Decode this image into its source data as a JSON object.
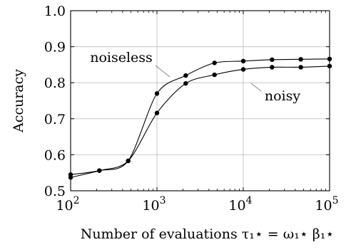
{
  "chart_data": {
    "type": "line",
    "xscale": "log",
    "xlim": [
      100,
      100000
    ],
    "ylim": [
      0.5,
      1.0
    ],
    "grid": true,
    "xlabel": "Number of evaluations τ₁⋆ = ω₁⋆ β₁⋆",
    "ylabel": "Accuracy",
    "x_ticks": [
      {
        "value": 100,
        "base": "10",
        "exp": "2"
      },
      {
        "value": 1000,
        "base": "10",
        "exp": "3"
      },
      {
        "value": 10000,
        "base": "10",
        "exp": "4"
      },
      {
        "value": 100000,
        "base": "10",
        "exp": "5"
      }
    ],
    "y_ticks": [
      {
        "value": 0.5,
        "label": "0.5"
      },
      {
        "value": 0.6,
        "label": "0.6"
      },
      {
        "value": 0.7,
        "label": "0.7"
      },
      {
        "value": 0.8,
        "label": "0.8"
      },
      {
        "value": 0.9,
        "label": "0.9"
      },
      {
        "value": 1.0,
        "label": "1.0"
      }
    ],
    "series": [
      {
        "name": "noiseless",
        "x": [
          100,
          215,
          464,
          1000,
          2154,
          4642,
          10000,
          21544,
          46416,
          100000
        ],
        "y": [
          0.545,
          0.556,
          0.583,
          0.77,
          0.82,
          0.855,
          0.86,
          0.864,
          0.865,
          0.866
        ]
      },
      {
        "name": "noisy",
        "x": [
          100,
          215,
          464,
          1000,
          2154,
          4642,
          10000,
          21544,
          46416,
          100000
        ],
        "y": [
          0.537,
          0.556,
          0.583,
          0.716,
          0.798,
          0.822,
          0.837,
          0.843,
          0.843,
          0.846
        ]
      }
    ],
    "annotations": [
      {
        "text": "noiseless",
        "series": "noiseless"
      },
      {
        "text": "noisy",
        "series": "noisy"
      }
    ]
  }
}
